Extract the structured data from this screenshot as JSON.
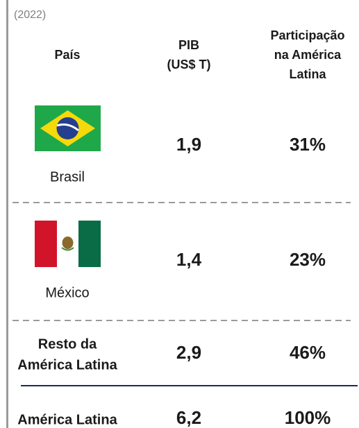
{
  "note": "(2022)",
  "header": [
    [
      "País"
    ],
    [
      "PIB",
      "(US$ T)"
    ],
    [
      "Participação",
      "na América",
      "Latina"
    ]
  ],
  "rows": [
    {
      "country": [
        "Brasil"
      ],
      "gdp": "1,9",
      "share": "31%"
    },
    {
      "country": [
        "México"
      ],
      "gdp": "1,4",
      "share": "23%"
    },
    {
      "country": [
        "Resto da",
        "América Latina"
      ],
      "gdp": "2,9",
      "share": "46%"
    },
    {
      "country": [
        "América Latina"
      ],
      "gdp": "6,2",
      "share": "100%"
    }
  ]
}
